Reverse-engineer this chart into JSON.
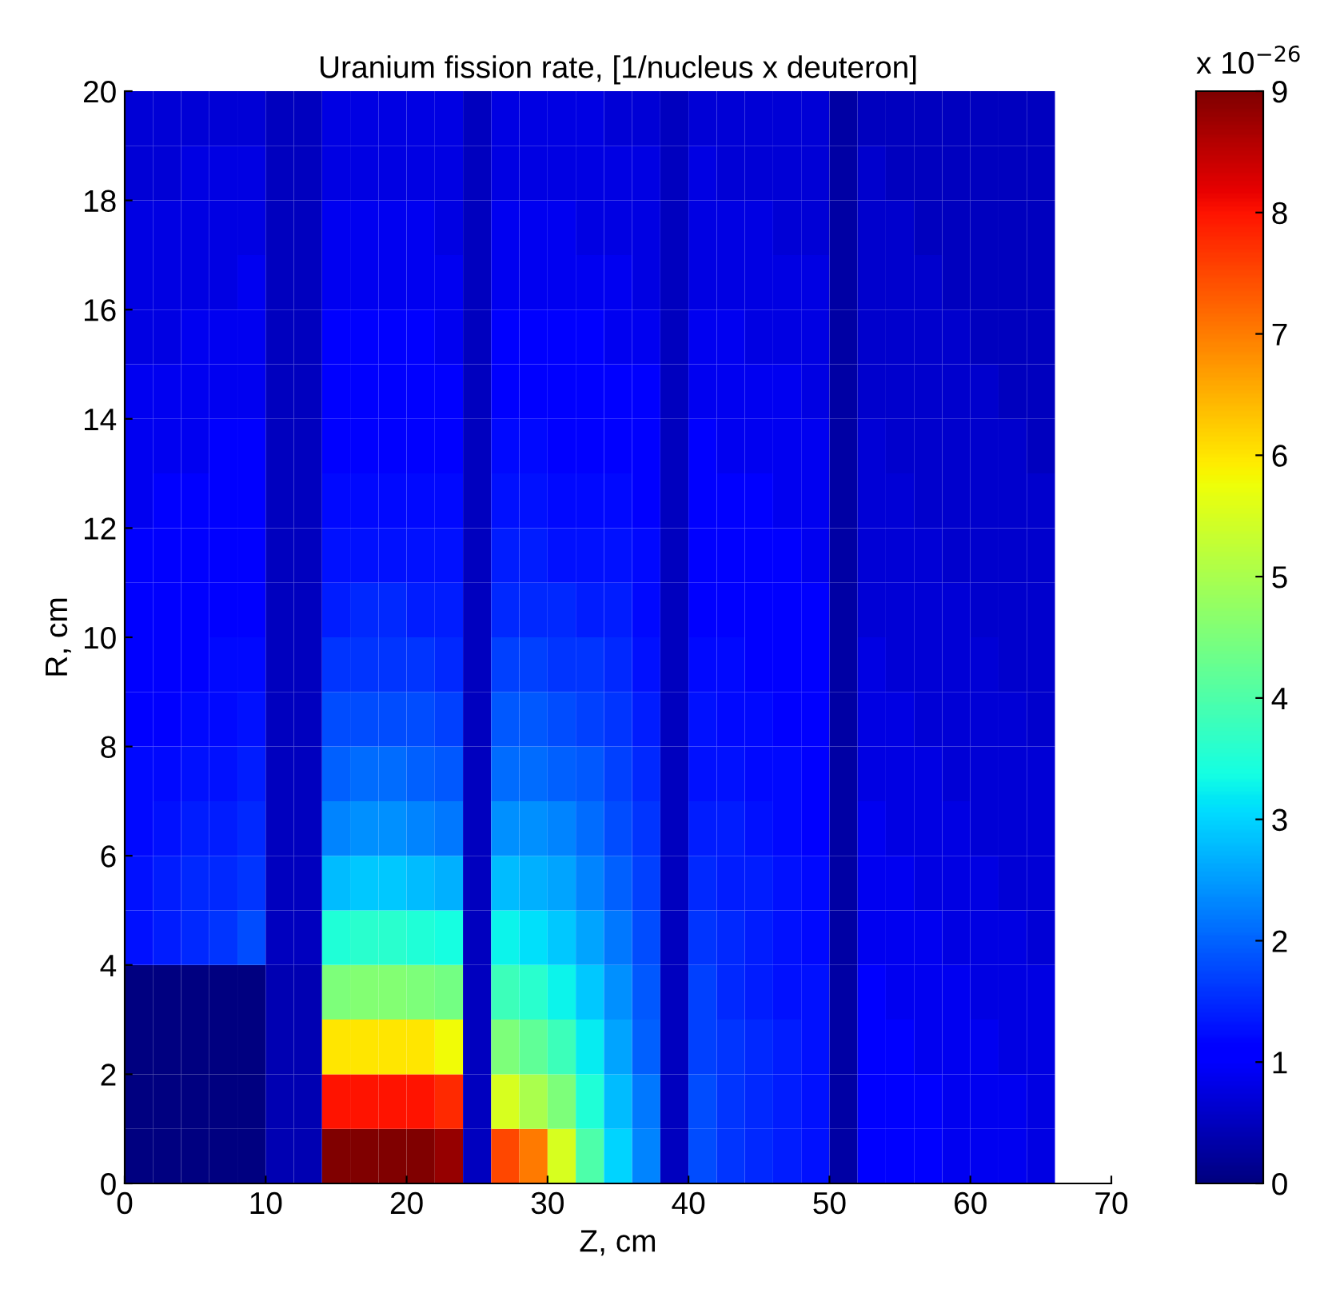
{
  "chart_data": {
    "type": "heatmap",
    "title": "Uranium fission rate, [1/nucleus x deuteron]",
    "xlabel": "Z, cm",
    "ylabel": "R, cm",
    "clabel": "x 10$^{−26}$",
    "x": [
      1,
      3,
      5,
      7,
      9,
      11,
      13,
      15,
      17,
      19,
      21,
      23,
      25,
      27,
      29,
      31,
      33,
      35,
      37,
      39,
      41,
      43,
      45,
      47,
      49,
      51,
      53,
      55,
      57,
      59,
      61,
      63,
      65
    ],
    "xlim": [
      0,
      70
    ],
    "xticks": [
      0,
      10,
      20,
      30,
      40,
      50,
      60,
      70
    ],
    "ylim": [
      0,
      20
    ],
    "yticks": [
      0,
      2,
      4,
      6,
      8,
      10,
      12,
      14,
      16,
      18,
      20
    ],
    "clim": [
      0,
      9
    ],
    "cticks": [
      0,
      1,
      2,
      3,
      4,
      5,
      6,
      7,
      8,
      9
    ],
    "grid": false,
    "cells": [
      [
        0.7,
        0.7,
        0.7,
        0.7,
        0.7,
        0.5,
        0.5,
        0.8,
        0.8,
        0.8,
        0.8,
        0.8,
        0.5,
        0.8,
        0.8,
        0.8,
        0.8,
        0.7,
        0.7,
        0.5,
        0.7,
        0.7,
        0.7,
        0.7,
        0.7,
        0.3,
        0.5,
        0.5,
        0.5,
        0.5,
        0.5,
        0.5,
        0.5
      ],
      [
        0.7,
        0.7,
        0.8,
        0.8,
        0.8,
        0.5,
        0.5,
        0.8,
        0.8,
        0.8,
        0.8,
        0.8,
        0.5,
        0.8,
        0.8,
        0.8,
        0.8,
        0.8,
        0.8,
        0.5,
        0.8,
        0.7,
        0.7,
        0.7,
        0.7,
        0.3,
        0.6,
        0.5,
        0.5,
        0.5,
        0.5,
        0.5,
        0.5
      ],
      [
        0.8,
        0.8,
        0.8,
        0.8,
        0.8,
        0.5,
        0.5,
        0.9,
        0.9,
        0.9,
        0.9,
        0.8,
        0.5,
        0.9,
        0.9,
        0.9,
        0.8,
        0.8,
        0.8,
        0.5,
        0.8,
        0.8,
        0.8,
        0.7,
        0.7,
        0.3,
        0.6,
        0.6,
        0.5,
        0.5,
        0.5,
        0.5,
        0.5
      ],
      [
        0.8,
        0.8,
        0.8,
        0.8,
        0.9,
        0.5,
        0.5,
        0.9,
        0.9,
        0.9,
        0.9,
        0.9,
        0.5,
        0.9,
        0.9,
        0.9,
        0.9,
        0.9,
        0.8,
        0.5,
        0.8,
        0.8,
        0.8,
        0.8,
        0.8,
        0.3,
        0.6,
        0.6,
        0.6,
        0.5,
        0.5,
        0.5,
        0.5
      ],
      [
        0.8,
        0.8,
        0.9,
        0.9,
        0.9,
        0.5,
        0.5,
        1.0,
        1.0,
        1.0,
        1.0,
        0.9,
        0.5,
        1.0,
        1.0,
        1.0,
        1.0,
        0.9,
        0.9,
        0.5,
        0.9,
        0.9,
        0.8,
        0.8,
        0.8,
        0.3,
        0.6,
        0.6,
        0.6,
        0.6,
        0.5,
        0.5,
        0.5
      ],
      [
        0.9,
        0.9,
        0.9,
        0.9,
        0.9,
        0.5,
        0.5,
        1.0,
        1.0,
        1.0,
        1.0,
        1.0,
        0.5,
        1.1,
        1.1,
        1.1,
        1.0,
        1.0,
        1.0,
        0.5,
        0.9,
        0.9,
        0.9,
        0.9,
        0.8,
        0.3,
        0.6,
        0.6,
        0.6,
        0.6,
        0.6,
        0.5,
        0.5
      ],
      [
        0.9,
        0.9,
        0.9,
        1.0,
        1.0,
        0.5,
        0.5,
        1.1,
        1.1,
        1.1,
        1.1,
        1.1,
        0.5,
        1.2,
        1.2,
        1.1,
        1.1,
        1.1,
        1.0,
        0.5,
        1.0,
        0.9,
        0.9,
        0.9,
        0.9,
        0.3,
        0.7,
        0.6,
        0.6,
        0.6,
        0.6,
        0.6,
        0.5
      ],
      [
        0.9,
        1.0,
        1.0,
        1.0,
        1.0,
        0.5,
        0.5,
        1.2,
        1.2,
        1.2,
        1.2,
        1.2,
        0.5,
        1.3,
        1.3,
        1.2,
        1.2,
        1.2,
        1.1,
        0.5,
        1.0,
        1.0,
        1.0,
        0.9,
        0.9,
        0.3,
        0.7,
        0.7,
        0.6,
        0.6,
        0.6,
        0.6,
        0.6
      ],
      [
        1.0,
        1.0,
        1.0,
        1.0,
        1.1,
        0.5,
        0.5,
        1.3,
        1.3,
        1.3,
        1.3,
        1.3,
        0.5,
        1.4,
        1.4,
        1.3,
        1.3,
        1.3,
        1.2,
        0.5,
        1.1,
        1.0,
        1.0,
        1.0,
        0.9,
        0.3,
        0.7,
        0.7,
        0.7,
        0.6,
        0.6,
        0.6,
        0.6
      ],
      [
        1.0,
        1.0,
        1.1,
        1.1,
        1.1,
        0.5,
        0.5,
        1.4,
        1.5,
        1.5,
        1.4,
        1.4,
        0.5,
        1.5,
        1.5,
        1.5,
        1.4,
        1.4,
        1.2,
        0.5,
        1.1,
        1.1,
        1.1,
        1.0,
        1.0,
        0.3,
        0.7,
        0.7,
        0.7,
        0.7,
        0.6,
        0.6,
        0.6
      ],
      [
        1.1,
        1.1,
        1.1,
        1.2,
        1.2,
        0.5,
        0.5,
        1.6,
        1.6,
        1.6,
        1.6,
        1.5,
        0.5,
        1.7,
        1.7,
        1.6,
        1.6,
        1.5,
        1.3,
        0.5,
        1.2,
        1.2,
        1.1,
        1.1,
        1.0,
        0.3,
        0.8,
        0.7,
        0.7,
        0.7,
        0.7,
        0.6,
        0.6
      ],
      [
        1.1,
        1.1,
        1.2,
        1.2,
        1.3,
        0.5,
        0.5,
        1.8,
        1.8,
        1.8,
        1.8,
        1.7,
        0.5,
        1.9,
        1.9,
        1.8,
        1.7,
        1.6,
        1.4,
        0.5,
        1.3,
        1.2,
        1.2,
        1.1,
        1.0,
        0.3,
        0.8,
        0.8,
        0.7,
        0.7,
        0.7,
        0.7,
        0.6
      ],
      [
        1.2,
        1.2,
        1.3,
        1.3,
        1.4,
        0.5,
        0.5,
        2.0,
        2.1,
        2.1,
        2.0,
        1.9,
        0.5,
        2.1,
        2.1,
        2.0,
        1.9,
        1.7,
        1.5,
        0.5,
        1.3,
        1.3,
        1.2,
        1.2,
        1.1,
        0.3,
        0.8,
        0.8,
        0.8,
        0.7,
        0.7,
        0.7,
        0.7
      ],
      [
        1.2,
        1.3,
        1.4,
        1.4,
        1.5,
        0.5,
        0.5,
        2.3,
        2.4,
        2.4,
        2.3,
        2.2,
        0.5,
        2.4,
        2.4,
        2.3,
        2.1,
        1.8,
        1.6,
        0.5,
        1.4,
        1.4,
        1.3,
        1.2,
        1.1,
        0.3,
        0.9,
        0.8,
        0.8,
        0.8,
        0.7,
        0.7,
        0.7
      ],
      [
        1.3,
        1.4,
        1.5,
        1.5,
        1.6,
        0.5,
        0.5,
        2.8,
        2.9,
        2.9,
        2.8,
        2.7,
        0.5,
        2.8,
        2.7,
        2.6,
        2.3,
        2.0,
        1.7,
        0.5,
        1.5,
        1.4,
        1.4,
        1.3,
        1.2,
        0.3,
        0.9,
        0.9,
        0.8,
        0.8,
        0.8,
        0.7,
        0.7
      ],
      [
        1.3,
        1.4,
        1.5,
        1.6,
        1.8,
        0.5,
        0.5,
        3.5,
        3.6,
        3.6,
        3.5,
        3.4,
        0.5,
        3.3,
        3.1,
        2.9,
        2.6,
        2.2,
        1.8,
        0.5,
        1.6,
        1.5,
        1.4,
        1.3,
        1.2,
        0.3,
        0.9,
        0.9,
        0.9,
        0.8,
        0.8,
        0.8,
        0.7
      ],
      [
        0,
        0,
        0,
        0,
        0,
        0.4,
        0.4,
        4.5,
        4.6,
        4.6,
        4.5,
        4.4,
        0.5,
        3.8,
        3.6,
        3.3,
        2.9,
        2.4,
        1.9,
        0.5,
        1.7,
        1.5,
        1.4,
        1.3,
        1.3,
        0.3,
        1.0,
        0.9,
        0.9,
        0.9,
        0.8,
        0.8,
        0.8
      ],
      [
        0,
        0,
        0,
        0,
        0,
        0.4,
        0.4,
        6.0,
        6.0,
        6.0,
        6.0,
        5.8,
        0.5,
        4.5,
        4.2,
        3.8,
        3.2,
        2.6,
        2.0,
        0.5,
        1.7,
        1.6,
        1.5,
        1.4,
        1.3,
        0.3,
        1.0,
        1.0,
        0.9,
        0.9,
        0.9,
        0.8,
        0.8
      ],
      [
        0,
        0,
        0,
        0,
        0,
        0.4,
        0.4,
        8.0,
        8.0,
        8.0,
        8.0,
        7.8,
        0.5,
        5.5,
        5.0,
        4.5,
        3.5,
        2.8,
        2.2,
        0.5,
        1.8,
        1.6,
        1.5,
        1.4,
        1.3,
        0.3,
        1.0,
        1.0,
        1.0,
        0.9,
        0.9,
        0.9,
        0.8
      ],
      [
        0,
        0,
        0,
        0,
        0,
        0.4,
        0.4,
        9.0,
        9.0,
        9.0,
        9.0,
        8.8,
        0.5,
        7.5,
        7.0,
        5.5,
        4.0,
        3.0,
        2.3,
        0.5,
        1.8,
        1.6,
        1.5,
        1.4,
        1.3,
        0.3,
        1.0,
        1.0,
        1.0,
        0.9,
        0.9,
        0.9,
        0.8
      ]
    ]
  }
}
